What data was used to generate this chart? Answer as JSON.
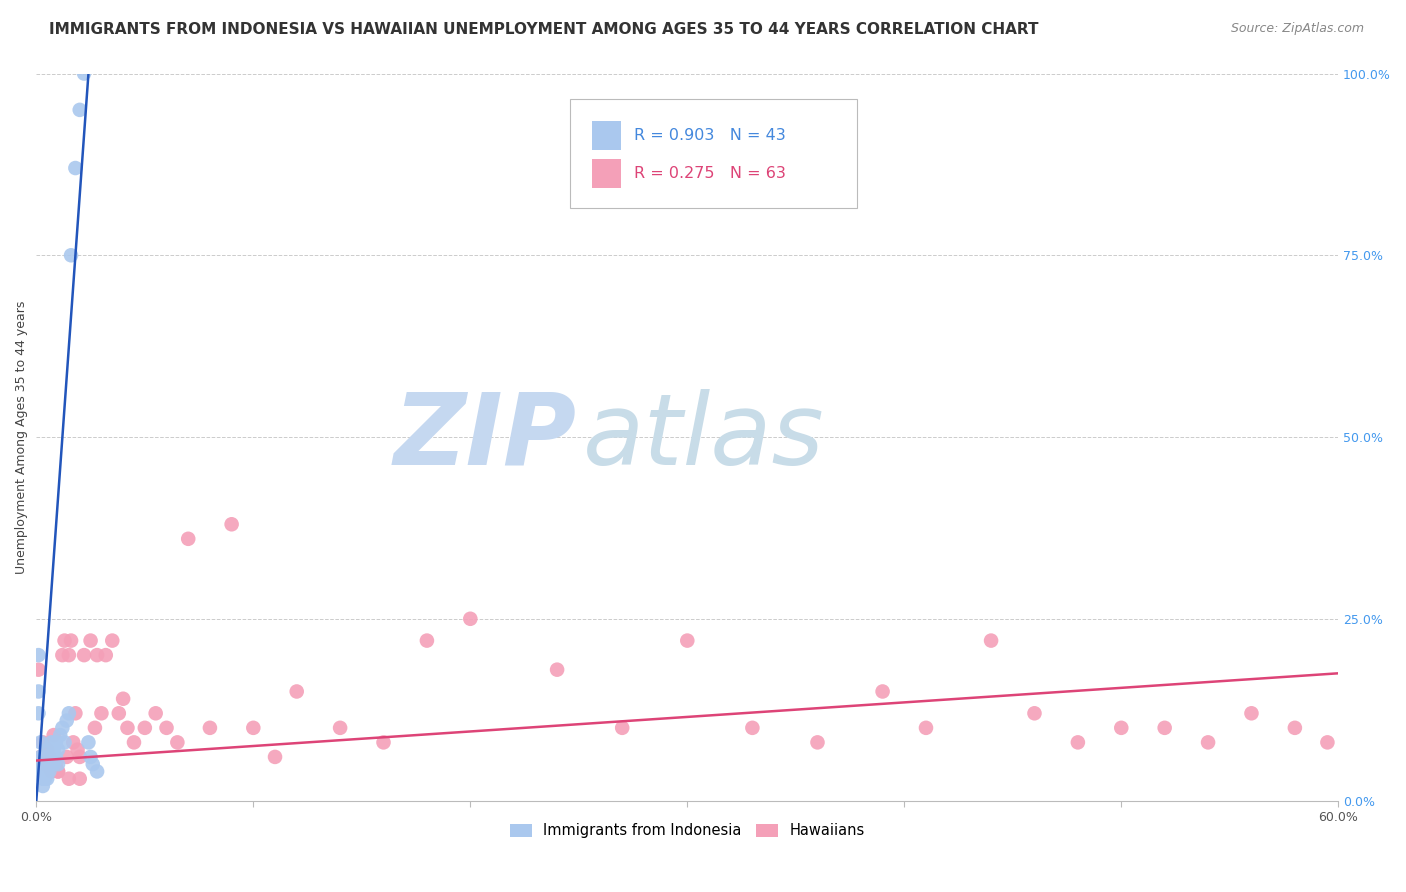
{
  "title": "IMMIGRANTS FROM INDONESIA VS HAWAIIAN UNEMPLOYMENT AMONG AGES 35 TO 44 YEARS CORRELATION CHART",
  "source": "Source: ZipAtlas.com",
  "ylabel": "Unemployment Among Ages 35 to 44 years",
  "background_color": "#ffffff",
  "grid_color": "#cccccc",
  "watermark_zip": "ZIP",
  "watermark_atlas": "atlas",
  "watermark_color_zip": "#c5d8f0",
  "watermark_color_atlas": "#c8dce8",
  "scatter_blue_color": "#aac8ee",
  "scatter_pink_color": "#f4a0b8",
  "line_blue_color": "#2255bb",
  "line_pink_color": "#dd4477",
  "scatter_blue_x": [
    0.001,
    0.001,
    0.001,
    0.002,
    0.002,
    0.002,
    0.002,
    0.003,
    0.003,
    0.003,
    0.003,
    0.003,
    0.004,
    0.004,
    0.004,
    0.005,
    0.005,
    0.005,
    0.005,
    0.006,
    0.006,
    0.006,
    0.007,
    0.007,
    0.008,
    0.008,
    0.009,
    0.009,
    0.01,
    0.01,
    0.011,
    0.012,
    0.013,
    0.014,
    0.015,
    0.016,
    0.018,
    0.02,
    0.022,
    0.024,
    0.025,
    0.026,
    0.028
  ],
  "scatter_blue_y": [
    0.2,
    0.15,
    0.12,
    0.08,
    0.06,
    0.05,
    0.04,
    0.06,
    0.05,
    0.04,
    0.03,
    0.02,
    0.05,
    0.04,
    0.03,
    0.07,
    0.05,
    0.04,
    0.03,
    0.06,
    0.05,
    0.04,
    0.08,
    0.06,
    0.07,
    0.05,
    0.08,
    0.06,
    0.07,
    0.05,
    0.09,
    0.1,
    0.08,
    0.11,
    0.12,
    0.75,
    0.87,
    0.95,
    1.0,
    0.08,
    0.06,
    0.05,
    0.04
  ],
  "scatter_pink_x": [
    0.001,
    0.002,
    0.003,
    0.004,
    0.005,
    0.006,
    0.007,
    0.008,
    0.009,
    0.01,
    0.012,
    0.013,
    0.014,
    0.015,
    0.016,
    0.017,
    0.018,
    0.019,
    0.02,
    0.022,
    0.025,
    0.027,
    0.028,
    0.03,
    0.032,
    0.035,
    0.038,
    0.04,
    0.042,
    0.045,
    0.05,
    0.055,
    0.06,
    0.065,
    0.07,
    0.08,
    0.09,
    0.1,
    0.11,
    0.12,
    0.14,
    0.16,
    0.18,
    0.2,
    0.24,
    0.27,
    0.3,
    0.33,
    0.36,
    0.39,
    0.41,
    0.44,
    0.46,
    0.48,
    0.5,
    0.52,
    0.54,
    0.56,
    0.58,
    0.595,
    0.01,
    0.015,
    0.02
  ],
  "scatter_pink_y": [
    0.18,
    0.06,
    0.08,
    0.05,
    0.07,
    0.06,
    0.04,
    0.09,
    0.05,
    0.04,
    0.2,
    0.22,
    0.06,
    0.2,
    0.22,
    0.08,
    0.12,
    0.07,
    0.06,
    0.2,
    0.22,
    0.1,
    0.2,
    0.12,
    0.2,
    0.22,
    0.12,
    0.14,
    0.1,
    0.08,
    0.1,
    0.12,
    0.1,
    0.08,
    0.36,
    0.1,
    0.38,
    0.1,
    0.06,
    0.15,
    0.1,
    0.08,
    0.22,
    0.25,
    0.18,
    0.1,
    0.22,
    0.1,
    0.08,
    0.15,
    0.1,
    0.22,
    0.12,
    0.08,
    0.1,
    0.1,
    0.08,
    0.12,
    0.1,
    0.08,
    0.04,
    0.03,
    0.03
  ],
  "blue_trend_x": [
    0.0,
    0.0245
  ],
  "blue_trend_y": [
    0.0,
    1.02
  ],
  "pink_trend_x": [
    0.0,
    0.6
  ],
  "pink_trend_y": [
    0.055,
    0.175
  ],
  "y_tick_values": [
    0.0,
    0.25,
    0.5,
    0.75,
    1.0
  ],
  "x_tick_values": [
    0.0,
    0.1,
    0.2,
    0.3,
    0.4,
    0.5,
    0.6
  ],
  "title_fontsize": 11,
  "source_fontsize": 9,
  "axis_fontsize": 9
}
